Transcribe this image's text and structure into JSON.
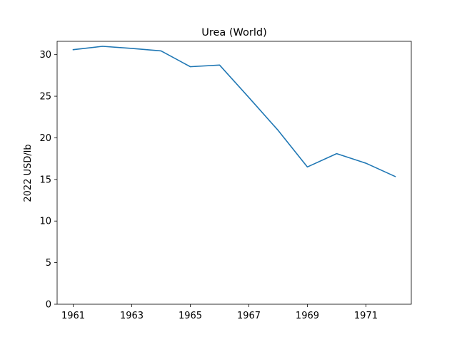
{
  "chart_data": {
    "type": "line",
    "title": "Urea (World)",
    "xlabel": "",
    "ylabel": "2022 USD/lb",
    "x": [
      1961,
      1962,
      1963,
      1964,
      1965,
      1966,
      1967,
      1968,
      1969,
      1970,
      1971,
      1972
    ],
    "series": [
      {
        "values": [
          30.6,
          31.0,
          30.75,
          30.45,
          28.55,
          28.75,
          24.85,
          20.9,
          16.5,
          18.1,
          16.95,
          15.35
        ],
        "color": "#1f77b4"
      }
    ],
    "xlim": [
      1960.45,
      1972.55
    ],
    "ylim": [
      0,
      31.6
    ],
    "xticks": [
      "1961",
      "1963",
      "1965",
      "1967",
      "1969",
      "1971"
    ],
    "yticks": [
      "0",
      "5",
      "10",
      "15",
      "20",
      "25",
      "30"
    ],
    "grid": false,
    "legend": "none"
  }
}
